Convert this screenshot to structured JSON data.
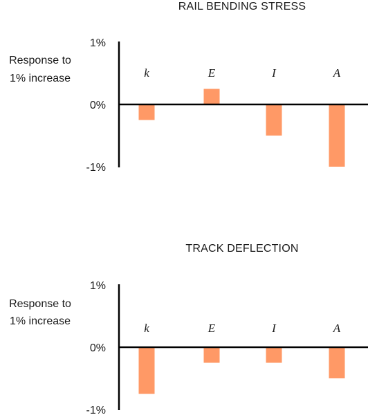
{
  "chart_data": [
    {
      "type": "bar",
      "title": "RAIL BENDING STRESS",
      "ylabel": "Response to 1% increase",
      "ylabel_lines": [
        "Response to",
        "1% increase"
      ],
      "categories": [
        "k",
        "E",
        "I",
        "A"
      ],
      "values": [
        -0.25,
        0.25,
        -0.5,
        -1.0
      ],
      "ylim": [
        -1,
        1
      ],
      "yticks": [
        1,
        0,
        -1
      ],
      "ytick_labels": [
        "1%",
        "0%",
        "-1%"
      ],
      "grid": false,
      "bar_color": "#ff9966"
    },
    {
      "type": "bar",
      "title": "TRACK DEFLECTION",
      "ylabel": "Response to 1% increase",
      "ylabel_lines": [
        "Response to",
        "1% increase"
      ],
      "categories": [
        "k",
        "E",
        "I",
        "A"
      ],
      "values": [
        -0.75,
        -0.25,
        -0.25,
        -0.5
      ],
      "ylim": [
        -1,
        1
      ],
      "yticks": [
        1,
        0,
        -1
      ],
      "ytick_labels": [
        "1%",
        "0%",
        "-1%"
      ],
      "grid": false,
      "bar_color": "#ff9966"
    }
  ]
}
